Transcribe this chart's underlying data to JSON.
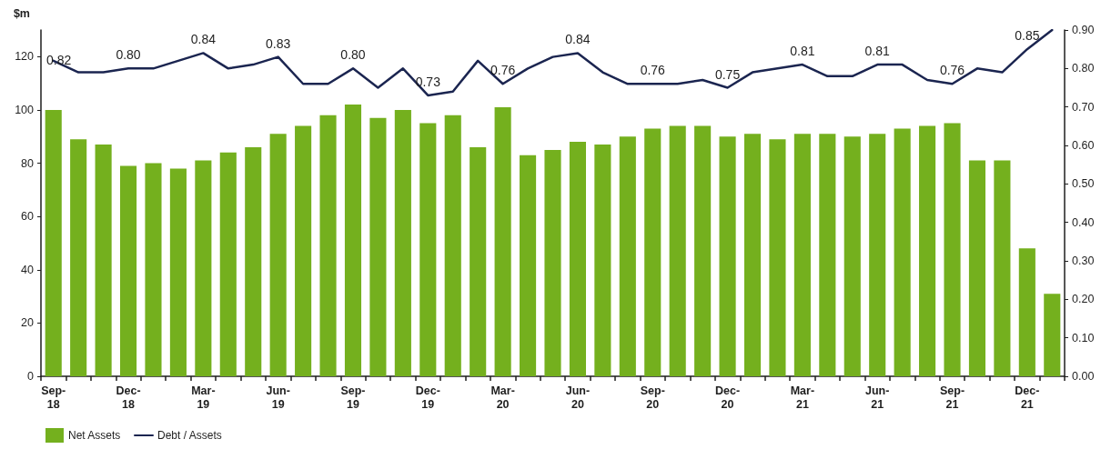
{
  "chart_data": {
    "type": "bar",
    "ylabel": "$m",
    "categories": [
      "Sep-18",
      null,
      null,
      "Dec-18",
      null,
      null,
      "Mar-19",
      null,
      null,
      "Jun-19",
      null,
      null,
      "Sep-19",
      null,
      null,
      "Dec-19",
      null,
      null,
      "Mar-20",
      null,
      null,
      "Jun-20",
      null,
      null,
      "Sep-20",
      null,
      null,
      "Dec-20",
      null,
      null,
      "Mar-21",
      null,
      null,
      "Jun-21",
      null,
      null,
      "Sep-21",
      null,
      null,
      "Dec-21",
      null
    ],
    "series": [
      {
        "name": "Net Assets",
        "color": "#74b01e",
        "values": [
          100,
          89,
          87,
          79,
          80,
          78,
          81,
          84,
          86,
          91,
          94,
          98,
          102,
          97,
          100,
          95,
          98,
          86,
          101,
          83,
          85,
          88,
          87,
          90,
          93,
          94,
          94,
          90,
          91,
          89,
          91,
          91,
          90,
          91,
          93,
          94,
          95,
          81,
          81,
          48,
          31
        ]
      },
      {
        "name": "Debt / Assets",
        "type": "line",
        "axis": "y2",
        "color": "#1b2550",
        "values": [
          0.82,
          0.79,
          0.79,
          0.8,
          0.8,
          0.82,
          0.84,
          0.8,
          0.81,
          0.83,
          0.76,
          0.76,
          0.8,
          0.75,
          0.8,
          0.73,
          0.74,
          0.82,
          0.76,
          0.8,
          0.83,
          0.84,
          0.79,
          0.76,
          0.76,
          0.76,
          0.77,
          0.75,
          0.79,
          0.8,
          0.81,
          0.78,
          0.78,
          0.81,
          0.81,
          0.77,
          0.76,
          0.8,
          0.79,
          0.85,
          0.9
        ],
        "value_labels": [
          "0.82",
          null,
          null,
          "0.80",
          null,
          null,
          "0.84",
          null,
          null,
          "0.83",
          null,
          null,
          "0.80",
          null,
          null,
          "0.73",
          null,
          null,
          "0.76",
          null,
          null,
          "0.84",
          null,
          null,
          "0.76",
          null,
          null,
          "0.75",
          null,
          null,
          "0.81",
          null,
          null,
          "0.81",
          null,
          null,
          "0.76",
          null,
          null,
          "0.85",
          null
        ]
      }
    ],
    "ylim": [
      0,
      130
    ],
    "yticks": [
      0,
      20,
      40,
      60,
      80,
      100,
      120
    ],
    "y2lim": [
      0,
      0.9
    ],
    "y2ticks": [
      {
        "value": 0,
        "label": "0.00"
      },
      {
        "value": 0.1,
        "label": "0.10"
      },
      {
        "value": 0.2,
        "label": "0.20"
      },
      {
        "value": 0.3,
        "label": "0.30"
      },
      {
        "value": 0.4,
        "label": "0.40"
      },
      {
        "value": 0.5,
        "label": "0.50"
      },
      {
        "value": 0.6,
        "label": "0.60"
      },
      {
        "value": 0.7,
        "label": "0.70"
      },
      {
        "value": 0.8,
        "label": "0.80"
      },
      {
        "value": 0.9,
        "label": "0.90"
      }
    ],
    "legend": "bottom left"
  }
}
